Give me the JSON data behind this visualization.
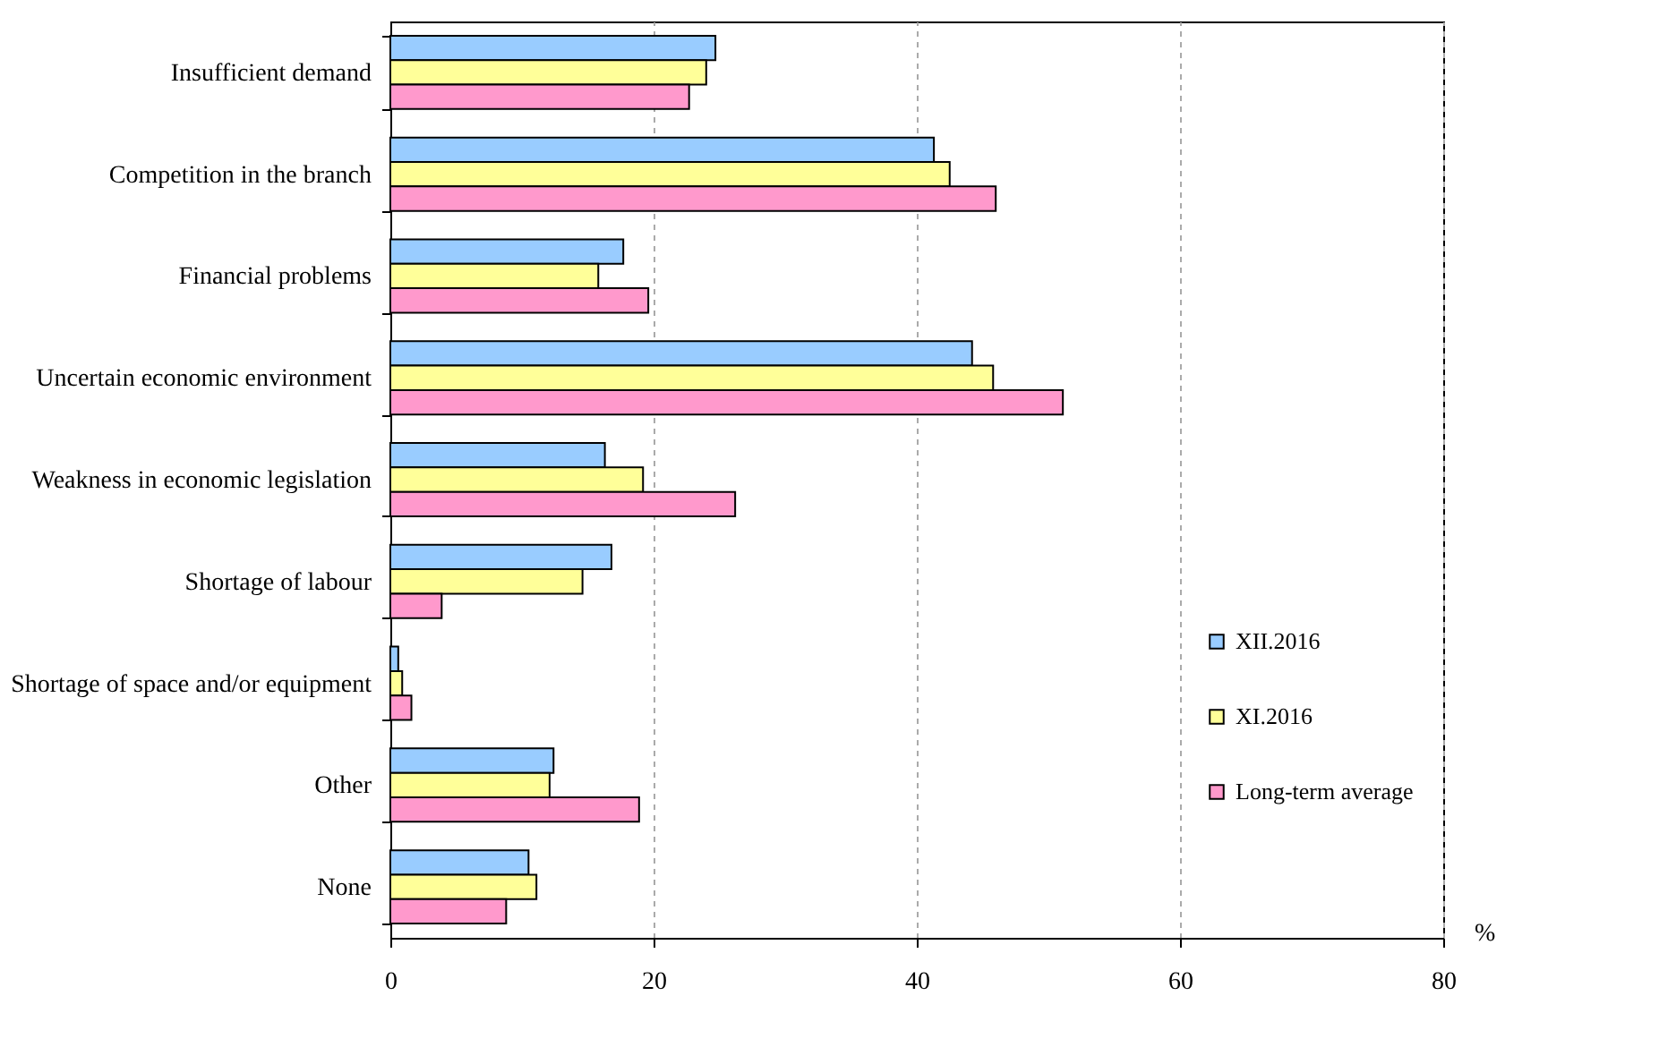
{
  "chart_data": {
    "type": "bar",
    "orientation": "horizontal",
    "xlabel": "%",
    "categories": [
      "Insufficient demand",
      "Competition in the branch",
      "Financial problems",
      "Uncertain economic environment",
      "Weakness in economic legislation",
      "Shortage of labour",
      "Shortage of space and/or equipment",
      "Other",
      "None"
    ],
    "series": [
      {
        "name": "XII.2016",
        "color": "#99ccff",
        "values": [
          24.7,
          41.3,
          17.7,
          44.2,
          16.3,
          16.8,
          0.6,
          12.4,
          10.5
        ]
      },
      {
        "name": "XI.2016",
        "color": "#ffff99",
        "values": [
          24.0,
          42.5,
          15.8,
          45.8,
          19.2,
          14.6,
          0.9,
          12.1,
          11.1
        ]
      },
      {
        "name": "Long-term average",
        "color": "#ff99cc",
        "values": [
          22.7,
          46.0,
          19.6,
          51.1,
          26.2,
          3.9,
          1.6,
          18.9,
          8.8
        ]
      }
    ],
    "xlim": [
      0,
      80
    ],
    "xticks": [
      0,
      20,
      40,
      60,
      80
    ],
    "grid": "x",
    "legend": "bottom right"
  }
}
